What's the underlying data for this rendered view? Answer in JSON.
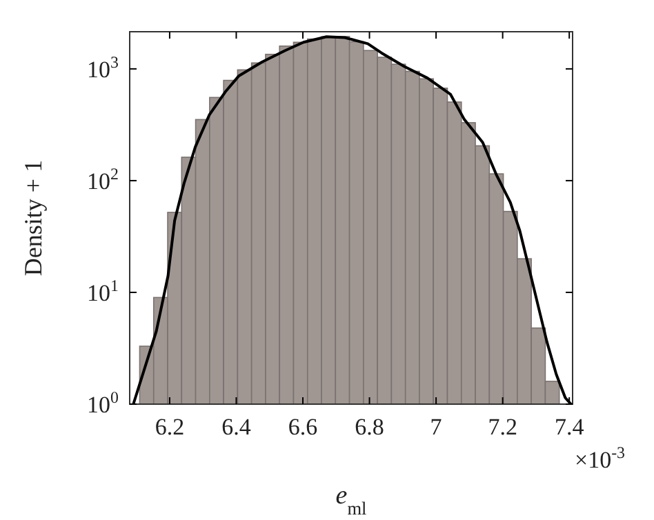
{
  "chart_data": {
    "type": "histogram",
    "xlabel": "e$_{ml}$",
    "ylabel": "Density + 1",
    "annotations": [
      "×10$^{-3}$"
    ],
    "log": "y",
    "xlim": [
      6.08,
      7.41
    ],
    "ylim": [
      1,
      2150
    ],
    "xticks": [
      6.2,
      6.4,
      6.6,
      6.8,
      7,
      7.2,
      7.4
    ],
    "yticks": [
      {
        "value": 1,
        "label": "10$^{0}$"
      },
      {
        "value": 10,
        "label": "10$^{1}$"
      },
      {
        "value": 100,
        "label": "10$^{2}$"
      },
      {
        "value": 1000,
        "label": "10$^{3}$"
      }
    ],
    "bins": [
      6.11,
      6.152,
      6.194,
      6.236,
      6.278,
      6.32,
      6.362,
      6.404,
      6.446,
      6.488,
      6.53,
      6.572,
      6.614,
      6.656,
      6.698,
      6.74,
      6.782,
      6.824,
      6.866,
      6.908,
      6.95,
      6.992,
      7.034,
      7.076,
      7.118,
      7.16,
      7.202,
      7.244,
      7.286,
      7.328,
      7.37
    ],
    "values": [
      3.3,
      9,
      52,
      162,
      352,
      555,
      789,
      980,
      1130,
      1350,
      1600,
      1730,
      1850,
      1940,
      1950,
      1750,
      1460,
      1270,
      1100,
      950,
      815,
      672,
      505,
      330,
      205,
      115,
      53,
      20,
      4.8,
      1.6
    ],
    "color": "#a09793",
    "series": [
      {
        "type": "line",
        "color": "#000000",
        "x": [
          6.091,
          6.125,
          6.16,
          6.195,
          6.215,
          6.243,
          6.277,
          6.319,
          6.367,
          6.408,
          6.477,
          6.547,
          6.602,
          6.671,
          6.726,
          6.795,
          6.836,
          6.905,
          6.974,
          7.043,
          7.085,
          7.14,
          7.181,
          7.223,
          7.251,
          7.278,
          7.306,
          7.333,
          7.361,
          7.388,
          7.405
        ],
        "values": [
          1,
          2.1,
          4.5,
          14,
          44,
          94,
          200,
          387,
          622,
          867,
          1150,
          1460,
          1730,
          1940,
          1905,
          1680,
          1390,
          1050,
          828,
          594,
          352,
          220,
          113,
          64,
          36,
          17,
          7.7,
          3.6,
          1.85,
          1.14,
          1
        ]
      }
    ]
  }
}
